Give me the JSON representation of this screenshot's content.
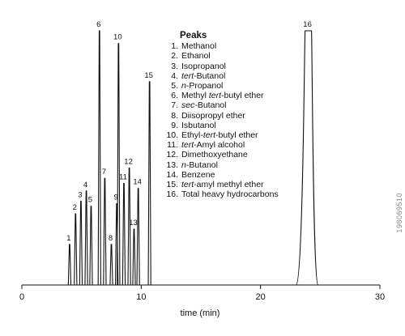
{
  "chart_data": {
    "type": "line",
    "xlabel": "time (min)",
    "xlim": [
      0,
      30
    ],
    "xticks": [
      0,
      10,
      20,
      30
    ],
    "ylim": [
      0,
      100
    ],
    "peaks": [
      {
        "label": "1",
        "x": 4.0,
        "y": 16
      },
      {
        "label": "2",
        "x": 4.5,
        "y": 28
      },
      {
        "label": "3",
        "x": 4.95,
        "y": 33
      },
      {
        "label": "4",
        "x": 5.4,
        "y": 37
      },
      {
        "label": "5",
        "x": 5.8,
        "y": 31
      },
      {
        "label": "6",
        "x": 6.5,
        "y": 100
      },
      {
        "label": "7",
        "x": 6.95,
        "y": 42
      },
      {
        "label": "8",
        "x": 7.5,
        "y": 16
      },
      {
        "label": "9",
        "x": 7.95,
        "y": 32
      },
      {
        "label": "10",
        "x": 8.1,
        "y": 95
      },
      {
        "label": "11",
        "x": 8.55,
        "y": 40
      },
      {
        "label": "12",
        "x": 9.0,
        "y": 46
      },
      {
        "label": "13",
        "x": 9.4,
        "y": 22
      },
      {
        "label": "14",
        "x": 9.75,
        "y": 38
      },
      {
        "label": "15",
        "x": 10.7,
        "y": 80
      },
      {
        "label": "16",
        "x": 24.0,
        "y": 100
      }
    ],
    "legend": {
      "title": "Peaks",
      "items": [
        {
          "num": "1.",
          "parts": [
            {
              "t": "Methanol",
              "i": false
            }
          ]
        },
        {
          "num": "2.",
          "parts": [
            {
              "t": "Ethanol",
              "i": false
            }
          ]
        },
        {
          "num": "3.",
          "parts": [
            {
              "t": "Isopropanol",
              "i": false
            }
          ]
        },
        {
          "num": "4.",
          "parts": [
            {
              "t": "tert",
              "i": true
            },
            {
              "t": "-Butanol",
              "i": false
            }
          ]
        },
        {
          "num": "5.",
          "parts": [
            {
              "t": "n",
              "i": true
            },
            {
              "t": "-Propanol",
              "i": false
            }
          ]
        },
        {
          "num": "6.",
          "parts": [
            {
              "t": "Methyl ",
              "i": false
            },
            {
              "t": "tert",
              "i": true
            },
            {
              "t": "-butyl ether",
              "i": false
            }
          ]
        },
        {
          "num": "7.",
          "parts": [
            {
              "t": "sec",
              "i": true
            },
            {
              "t": "-Butanol",
              "i": false
            }
          ]
        },
        {
          "num": "8.",
          "parts": [
            {
              "t": "Diisopropyl ether",
              "i": false
            }
          ]
        },
        {
          "num": "9.",
          "parts": [
            {
              "t": "Isbutanol",
              "i": false
            }
          ]
        },
        {
          "num": "10.",
          "parts": [
            {
              "t": "Ethyl-",
              "i": false
            },
            {
              "t": "tert",
              "i": true
            },
            {
              "t": "-butyl ether",
              "i": false
            }
          ]
        },
        {
          "num": "11.",
          "parts": [
            {
              "t": "tert",
              "i": true
            },
            {
              "t": "-Amyl alcohol",
              "i": false
            }
          ]
        },
        {
          "num": "12.",
          "parts": [
            {
              "t": "Dimethoxyethane",
              "i": false
            }
          ]
        },
        {
          "num": "13.",
          "parts": [
            {
              "t": "n",
              "i": true
            },
            {
              "t": "-Butanol",
              "i": false
            }
          ]
        },
        {
          "num": "14.",
          "parts": [
            {
              "t": "Benzene",
              "i": false
            }
          ]
        },
        {
          "num": "15.",
          "parts": [
            {
              "t": "tert",
              "i": true
            },
            {
              "t": "-amyl methyl ether",
              "i": false
            }
          ]
        },
        {
          "num": "16.",
          "parts": [
            {
              "t": "Total heavy hydrocarbons",
              "i": false
            }
          ]
        }
      ]
    }
  },
  "watermark": "198069510"
}
